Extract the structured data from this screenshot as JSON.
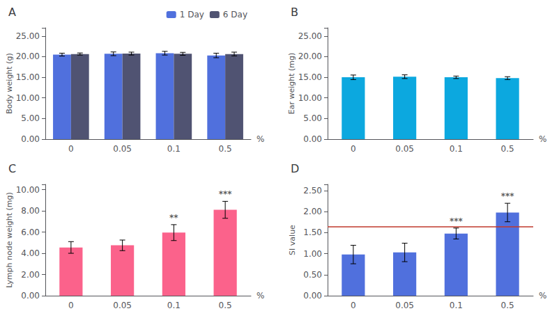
{
  "chart_data": [
    {
      "type": "bar",
      "title": "A",
      "xlabel": "%",
      "ylabel": "Body weight (g)",
      "categories": [
        "0",
        "0.05",
        "0.1",
        "0.5"
      ],
      "series": [
        {
          "name": "1 Day",
          "values": [
            20.5,
            20.7,
            20.85,
            20.3
          ],
          "errors": [
            0.35,
            0.45,
            0.45,
            0.55
          ]
        },
        {
          "name": "6 Day",
          "values": [
            20.65,
            20.75,
            20.7,
            20.65
          ],
          "errors": [
            0.25,
            0.35,
            0.35,
            0.45
          ]
        }
      ],
      "ylim": [
        0,
        27
      ],
      "yticks": [
        {
          "value": 0.0,
          "label": "0.00"
        },
        {
          "value": 5.0,
          "label": "5.00"
        },
        {
          "value": 10.0,
          "label": "10.00"
        },
        {
          "value": 15.0,
          "label": "15.00"
        },
        {
          "value": 20.0,
          "label": "20.00"
        },
        {
          "value": 25.0,
          "label": "25.00"
        }
      ],
      "grid": false,
      "legend": "top"
    },
    {
      "type": "bar",
      "title": "B",
      "xlabel": "%",
      "ylabel": "Ear weight (mg)",
      "categories": [
        "0",
        "0.05",
        "0.1",
        "0.5"
      ],
      "values": [
        15.0,
        15.15,
        15.0,
        14.8
      ],
      "errors": [
        0.55,
        0.45,
        0.3,
        0.35
      ],
      "ylim": [
        0,
        27
      ],
      "yticks": [
        {
          "value": 0.0,
          "label": "0.00"
        },
        {
          "value": 5.0,
          "label": "5.00"
        },
        {
          "value": 10.0,
          "label": "10.00"
        },
        {
          "value": 15.0,
          "label": "15.00"
        },
        {
          "value": 20.0,
          "label": "20.00"
        },
        {
          "value": 25.0,
          "label": "25.00"
        }
      ],
      "grid": false
    },
    {
      "type": "bar",
      "title": "C",
      "xlabel": "%",
      "ylabel": "Lymph node weight (mg)",
      "categories": [
        "0",
        "0.05",
        "0.1",
        "0.5"
      ],
      "values": [
        4.55,
        4.75,
        5.95,
        8.1
      ],
      "errors": [
        0.55,
        0.5,
        0.75,
        0.8
      ],
      "annotations": [
        null,
        null,
        "**",
        "***"
      ],
      "ylim": [
        0,
        10.5
      ],
      "yticks": [
        {
          "value": 0.0,
          "label": "0.00"
        },
        {
          "value": 2.0,
          "label": "2.00"
        },
        {
          "value": 4.0,
          "label": "4.00"
        },
        {
          "value": 6.0,
          "label": "6.00"
        },
        {
          "value": 8.0,
          "label": "8.00"
        },
        {
          "value": 10.0,
          "label": "10.00"
        }
      ],
      "grid": false
    },
    {
      "type": "bar",
      "title": "D",
      "xlabel": "%",
      "ylabel": "SI value",
      "categories": [
        "0",
        "0.05",
        "0.1",
        "0.5"
      ],
      "values": [
        0.98,
        1.03,
        1.48,
        1.98
      ],
      "errors": [
        0.22,
        0.22,
        0.13,
        0.22
      ],
      "annotations": [
        null,
        null,
        "***",
        "***"
      ],
      "hline": {
        "value": 1.65,
        "color": "#C0392B"
      },
      "ylim": [
        0,
        2.65
      ],
      "yticks": [
        {
          "value": 0.0,
          "label": "0.00"
        },
        {
          "value": 0.5,
          "label": "0.50"
        },
        {
          "value": 1.0,
          "label": "1.00"
        },
        {
          "value": 1.5,
          "label": "1.50"
        },
        {
          "value": 2.0,
          "label": "2.00"
        },
        {
          "value": 2.5,
          "label": "2.50"
        }
      ],
      "grid": false
    }
  ]
}
